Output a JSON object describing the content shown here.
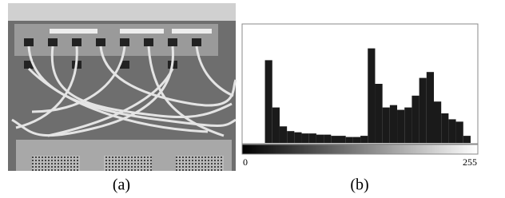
{
  "figure": {
    "panel_a": {
      "caption": "(a)"
    }
  },
  "chart_data": {
    "type": "histogram",
    "caption": "(b)",
    "bins": [
      0,
      8,
      16,
      24,
      32,
      40,
      48,
      56,
      64,
      72,
      80,
      88,
      96,
      104,
      112,
      120,
      128,
      136,
      144,
      152,
      160,
      168,
      176,
      184,
      192,
      200,
      208,
      216,
      224,
      232,
      240,
      248,
      255
    ],
    "values": [
      0,
      0,
      0,
      70,
      30,
      14,
      10,
      9,
      8,
      8,
      7,
      7,
      6,
      6,
      5,
      5,
      6,
      80,
      50,
      30,
      32,
      28,
      30,
      40,
      55,
      60,
      35,
      25,
      20,
      18,
      6,
      0
    ],
    "color": "#1a1a1a",
    "xlim": [
      0,
      255
    ],
    "xticks": [
      0,
      255
    ],
    "ylim": [
      0,
      100
    ]
  }
}
